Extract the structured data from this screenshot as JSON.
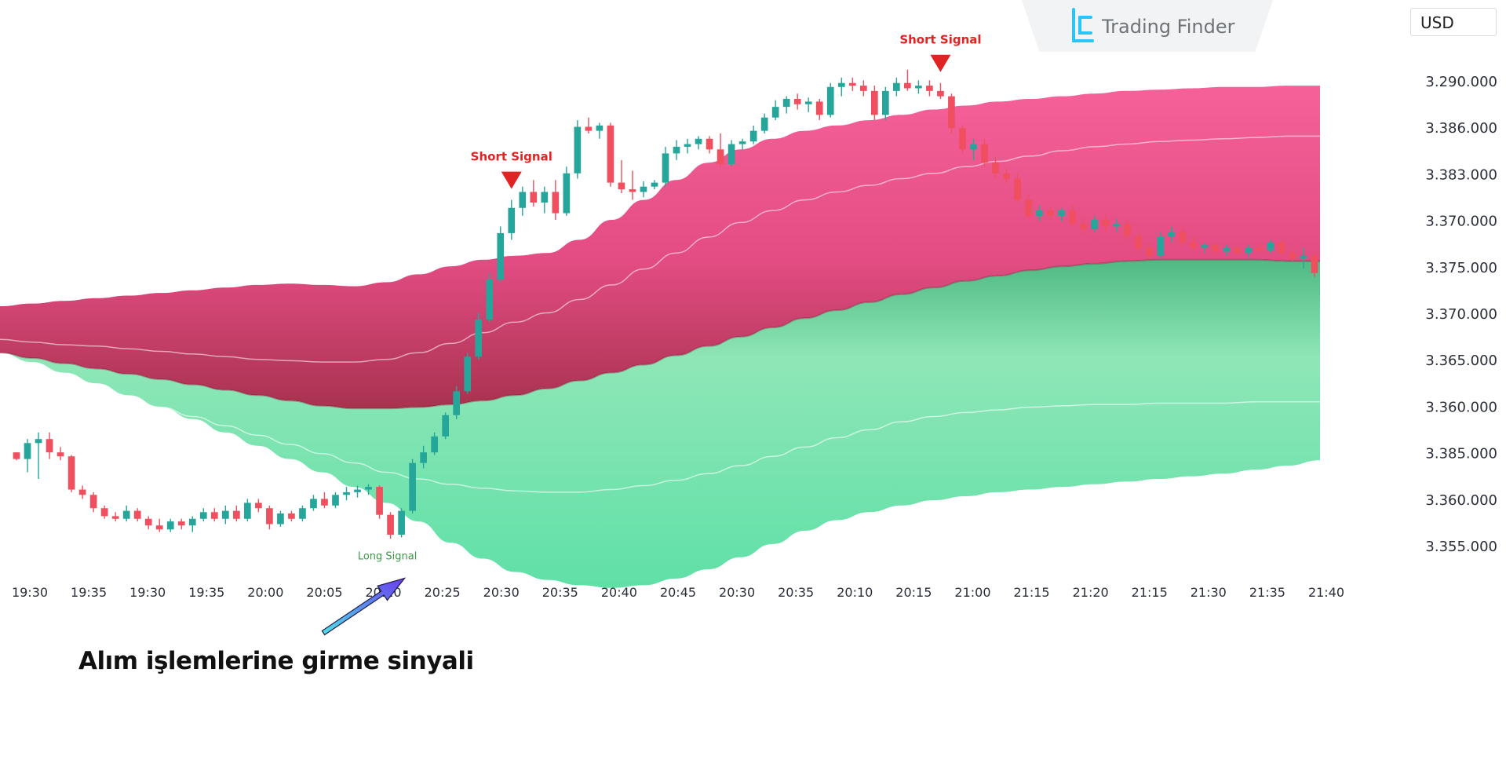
{
  "brand": {
    "name": "Trading Finder",
    "icon": "trading-finder-logo-icon"
  },
  "currency": "USD",
  "caption": "Alım işlemlerine girme sinyali",
  "colors": {
    "bull": "#26a69a",
    "bear": "#ef4f5e",
    "upper_band": "#f0588f",
    "lower_band": "#5fe0a7",
    "short_signal": "#e02424",
    "long_signal": "#3b9a4a",
    "arrow": "#6a5cf0"
  },
  "signals": [
    {
      "type": "short",
      "label": "Short Signal",
      "candle": 45
    },
    {
      "type": "short",
      "label": "Short Signal",
      "candle": 84
    },
    {
      "type": "long",
      "label": "Long Signal",
      "candle": 35
    }
  ],
  "chart_data": {
    "type": "candlestick",
    "title": "",
    "xlabel": "",
    "ylabel": "",
    "grid": false,
    "y_tick_labels": [
      "3.290.000",
      "3.386.000",
      "3.383.000",
      "3.370.000",
      "3.375.000",
      "3.370.000",
      "3.365.000",
      "3.360.000",
      "3.385.000",
      "3.360.000",
      "3.355.000"
    ],
    "x_tick_labels": [
      "19:30",
      "19:35",
      "19:30",
      "19:35",
      "20:00",
      "20:05",
      "20:10",
      "20:25",
      "20:30",
      "20:35",
      "20:40",
      "20:45",
      "20:30",
      "20:35",
      "20:10",
      "20:15",
      "21:00",
      "21:15",
      "21:20",
      "21:15",
      "21:30",
      "21:35",
      "21:40"
    ],
    "ylim": [
      3.3545,
      3.3935
    ],
    "candles": [
      [
        3.363,
        3.363,
        3.3624,
        3.3625
      ],
      [
        3.3625,
        3.364,
        3.3615,
        3.3637
      ],
      [
        3.3637,
        3.3645,
        3.361,
        3.364
      ],
      [
        3.364,
        3.3645,
        3.3625,
        3.363
      ],
      [
        3.363,
        3.3634,
        3.3624,
        3.3627
      ],
      [
        3.3627,
        3.3628,
        3.36,
        3.3602
      ],
      [
        3.3602,
        3.3605,
        3.3595,
        3.3598
      ],
      [
        3.3598,
        3.36,
        3.3585,
        3.3588
      ],
      [
        3.3588,
        3.359,
        3.358,
        3.3582
      ],
      [
        3.3582,
        3.3585,
        3.3578,
        3.358
      ],
      [
        3.358,
        3.359,
        3.3578,
        3.3586
      ],
      [
        3.3586,
        3.3588,
        3.3578,
        3.358
      ],
      [
        3.358,
        3.3582,
        3.3572,
        3.3575
      ],
      [
        3.3575,
        3.358,
        3.357,
        3.3572
      ],
      [
        3.3572,
        3.358,
        3.357,
        3.3578
      ],
      [
        3.3578,
        3.358,
        3.3572,
        3.3575
      ],
      [
        3.3575,
        3.3582,
        3.357,
        3.358
      ],
      [
        3.358,
        3.3588,
        3.3578,
        3.3585
      ],
      [
        3.3585,
        3.3588,
        3.3578,
        3.358
      ],
      [
        3.358,
        3.359,
        3.3576,
        3.3586
      ],
      [
        3.3586,
        3.359,
        3.3578,
        3.358
      ],
      [
        3.358,
        3.3595,
        3.3578,
        3.3592
      ],
      [
        3.3592,
        3.3595,
        3.3585,
        3.3588
      ],
      [
        3.3588,
        3.359,
        3.3572,
        3.3576
      ],
      [
        3.3576,
        3.3586,
        3.3574,
        3.3584
      ],
      [
        3.3584,
        3.3586,
        3.3578,
        3.358
      ],
      [
        3.358,
        3.359,
        3.3578,
        3.3588
      ],
      [
        3.3588,
        3.3598,
        3.3586,
        3.3595
      ],
      [
        3.3595,
        3.36,
        3.3588,
        3.359
      ],
      [
        3.359,
        3.36,
        3.3588,
        3.3598
      ],
      [
        3.3598,
        3.3604,
        3.3594,
        3.36
      ],
      [
        3.36,
        3.3605,
        3.3596,
        3.3602
      ],
      [
        3.3602,
        3.3606,
        3.3598,
        3.3604
      ],
      [
        3.3604,
        3.3605,
        3.358,
        3.3583
      ],
      [
        3.3583,
        3.3585,
        3.3565,
        3.3568
      ],
      [
        3.3568,
        3.3588,
        3.3566,
        3.3586
      ],
      [
        3.3586,
        3.3625,
        3.3584,
        3.3622
      ],
      [
        3.3622,
        3.3635,
        3.3618,
        3.363
      ],
      [
        3.363,
        3.3645,
        3.3628,
        3.3642
      ],
      [
        3.3642,
        3.366,
        3.364,
        3.3658
      ],
      [
        3.3658,
        3.368,
        3.3655,
        3.3676
      ],
      [
        3.3676,
        3.3705,
        3.3674,
        3.3702
      ],
      [
        3.3702,
        3.3735,
        3.37,
        3.373
      ],
      [
        3.373,
        3.3765,
        3.3728,
        3.376
      ],
      [
        3.376,
        3.38,
        3.3758,
        3.3795
      ],
      [
        3.3795,
        3.382,
        3.379,
        3.3814
      ],
      [
        3.3814,
        3.383,
        3.3808,
        3.3826
      ],
      [
        3.3826,
        3.3835,
        3.3815,
        3.3818
      ],
      [
        3.3818,
        3.383,
        3.381,
        3.3826
      ],
      [
        3.3826,
        3.3835,
        3.3805,
        3.381
      ],
      [
        3.381,
        3.3845,
        3.3808,
        3.384
      ],
      [
        3.384,
        3.388,
        3.3836,
        3.3875
      ],
      [
        3.3875,
        3.3882,
        3.387,
        3.3872
      ],
      [
        3.3872,
        3.3878,
        3.3866,
        3.3876
      ],
      [
        3.3876,
        3.3878,
        3.383,
        3.3833
      ],
      [
        3.3833,
        3.385,
        3.3825,
        3.3828
      ],
      [
        3.3828,
        3.3842,
        3.382,
        3.3826
      ],
      [
        3.3826,
        3.3834,
        3.3822,
        3.383
      ],
      [
        3.383,
        3.3835,
        3.3828,
        3.3833
      ],
      [
        3.3833,
        3.386,
        3.383,
        3.3855
      ],
      [
        3.3855,
        3.3865,
        3.385,
        3.386
      ],
      [
        3.386,
        3.3866,
        3.3855,
        3.3862
      ],
      [
        3.3862,
        3.3868,
        3.3858,
        3.3866
      ],
      [
        3.3866,
        3.3868,
        3.3855,
        3.3858
      ],
      [
        3.3858,
        3.387,
        3.3845,
        3.3847
      ],
      [
        3.3847,
        3.3865,
        3.3845,
        3.3862
      ],
      [
        3.3862,
        3.3866,
        3.3858,
        3.3864
      ],
      [
        3.3864,
        3.3876,
        3.3862,
        3.3872
      ],
      [
        3.3872,
        3.3885,
        3.387,
        3.3882
      ],
      [
        3.3882,
        3.3895,
        3.388,
        3.389
      ],
      [
        3.389,
        3.3898,
        3.3885,
        3.3896
      ],
      [
        3.3896,
        3.39,
        3.3888,
        3.3892
      ],
      [
        3.3892,
        3.3897,
        3.3886,
        3.3894
      ],
      [
        3.3894,
        3.3896,
        3.388,
        3.3884
      ],
      [
        3.3884,
        3.3908,
        3.3882,
        3.3905
      ],
      [
        3.3905,
        3.3912,
        3.3898,
        3.3908
      ],
      [
        3.3908,
        3.3912,
        3.3902,
        3.3906
      ],
      [
        3.3906,
        3.391,
        3.3898,
        3.3902
      ],
      [
        3.3902,
        3.3906,
        3.388,
        3.3884
      ],
      [
        3.3884,
        3.3905,
        3.388,
        3.3902
      ],
      [
        3.3902,
        3.3912,
        3.3898,
        3.3908
      ],
      [
        3.3908,
        3.3918,
        3.3902,
        3.3904
      ],
      [
        3.3904,
        3.391,
        3.39,
        3.3906
      ],
      [
        3.3906,
        3.391,
        3.3898,
        3.3902
      ],
      [
        3.3902,
        3.3908,
        3.3896,
        3.3898
      ],
      [
        3.3898,
        3.39,
        3.387,
        3.3874
      ],
      [
        3.3874,
        3.3876,
        3.3855,
        3.3858
      ],
      [
        3.3858,
        3.3866,
        3.385,
        3.3862
      ],
      [
        3.3862,
        3.3866,
        3.3845,
        3.3848
      ],
      [
        3.3848,
        3.3852,
        3.3836,
        3.384
      ],
      [
        3.384,
        3.3844,
        3.3832,
        3.3836
      ],
      [
        3.3836,
        3.384,
        3.3818,
        3.382
      ],
      [
        3.382,
        3.3824,
        3.3806,
        3.3808
      ],
      [
        3.3808,
        3.3816,
        3.3804,
        3.3812
      ],
      [
        3.3812,
        3.3815,
        3.3805,
        3.3808
      ],
      [
        3.3808,
        3.3814,
        3.3804,
        3.3812
      ],
      [
        3.3812,
        3.3816,
        3.38,
        3.3802
      ],
      [
        3.3802,
        3.3806,
        3.3794,
        3.3798
      ],
      [
        3.3798,
        3.3808,
        3.3796,
        3.3805
      ],
      [
        3.3805,
        3.3808,
        3.3796,
        3.38
      ],
      [
        3.38,
        3.3806,
        3.3796,
        3.3802
      ],
      [
        3.3802,
        3.3805,
        3.379,
        3.3793
      ],
      [
        3.3793,
        3.3796,
        3.378,
        3.3784
      ],
      [
        3.3784,
        3.3788,
        3.3775,
        3.3778
      ],
      [
        3.3778,
        3.3796,
        3.3776,
        3.3792
      ],
      [
        3.3792,
        3.38,
        3.3788,
        3.3796
      ],
      [
        3.3796,
        3.38,
        3.3785,
        3.3788
      ],
      [
        3.3788,
        3.3792,
        3.3782,
        3.3784
      ],
      [
        3.3784,
        3.3788,
        3.378,
        3.3786
      ],
      [
        3.3786,
        3.3788,
        3.3778,
        3.3781
      ],
      [
        3.3781,
        3.3786,
        3.3778,
        3.3784
      ],
      [
        3.3784,
        3.3786,
        3.3778,
        3.378
      ],
      [
        3.378,
        3.3786,
        3.3776,
        3.3784
      ],
      [
        3.3784,
        3.3788,
        3.378,
        3.3782
      ],
      [
        3.3782,
        3.379,
        3.378,
        3.3788
      ],
      [
        3.3788,
        3.379,
        3.3778,
        3.378
      ],
      [
        3.378,
        3.3782,
        3.3774,
        3.3776
      ],
      [
        3.3776,
        3.3784,
        3.3768,
        3.3778
      ],
      [
        3.3778,
        3.378,
        3.3762,
        3.3765
      ]
    ],
    "bands": {
      "upper_outer": [
        3.374,
        3.3742,
        3.3744,
        3.3746,
        3.3748,
        3.375,
        3.3752,
        3.3754,
        3.3756,
        3.3757,
        3.3756,
        3.3755,
        3.3758,
        3.3764,
        3.377,
        3.3775,
        3.3778,
        3.378,
        3.379,
        3.3805,
        3.382,
        3.3835,
        3.3848,
        3.3858,
        3.3866,
        3.3872,
        3.3876,
        3.388,
        3.3884,
        3.3888,
        3.3891,
        3.3894,
        3.3896,
        3.3898,
        3.39,
        3.3902,
        3.3903,
        3.3904,
        3.3905,
        3.3905,
        3.3906,
        3.3906
      ],
      "upper_mid": [
        3.3715,
        3.3713,
        3.3711,
        3.371,
        3.3708,
        3.3706,
        3.3704,
        3.3702,
        3.37,
        3.3699,
        3.3698,
        3.3698,
        3.37,
        3.3705,
        3.3712,
        3.372,
        3.3728,
        3.3735,
        3.3745,
        3.3756,
        3.3768,
        3.378,
        3.3792,
        3.3803,
        3.3812,
        3.382,
        3.3826,
        3.3831,
        3.3836,
        3.384,
        3.3845,
        3.3849,
        3.3853,
        3.3857,
        3.386,
        3.3862,
        3.3864,
        3.3865,
        3.3866,
        3.3867,
        3.3868,
        3.3868
      ],
      "center": [
        3.3705,
        3.3701,
        3.3697,
        3.3693,
        3.3689,
        3.3685,
        3.3681,
        3.3677,
        3.3673,
        3.3669,
        3.3665,
        3.3663,
        3.3663,
        3.3664,
        3.3666,
        3.3669,
        3.3673,
        3.3678,
        3.3684,
        3.369,
        3.3696,
        3.3703,
        3.371,
        3.3717,
        3.3724,
        3.3731,
        3.3737,
        3.3743,
        3.3749,
        3.3754,
        3.3759,
        3.3763,
        3.3767,
        3.377,
        3.3772,
        3.3774,
        3.3775,
        3.3775,
        3.3775,
        3.3775,
        3.3774,
        3.3774
      ],
      "lower_mid": [
        3.3695,
        3.3688,
        3.3682,
        3.3676,
        3.367,
        3.3664,
        3.3657,
        3.365,
        3.3643,
        3.3636,
        3.3629,
        3.3622,
        3.3615,
        3.361,
        3.3606,
        3.3603,
        3.3601,
        3.36,
        3.36,
        3.3602,
        3.3605,
        3.3609,
        3.3614,
        3.362,
        3.3627,
        3.3634,
        3.3641,
        3.3647,
        3.3653,
        3.3657,
        3.366,
        3.3662,
        3.3664,
        3.3665,
        3.3666,
        3.3666,
        3.3667,
        3.3667,
        3.3667,
        3.3668,
        3.3668,
        3.3668
      ],
      "lower_outer": [
        3.3705,
        3.3698,
        3.369,
        3.3682,
        3.3673,
        3.3664,
        3.3655,
        3.3645,
        3.3635,
        3.3625,
        3.3615,
        3.3604,
        3.3592,
        3.3578,
        3.3562,
        3.355,
        3.354,
        3.3534,
        3.353,
        3.3528,
        3.353,
        3.3535,
        3.3542,
        3.3551,
        3.3561,
        3.3571,
        3.3579,
        3.3585,
        3.359,
        3.3594,
        3.3597,
        3.36,
        3.3602,
        3.3604,
        3.3606,
        3.3608,
        3.361,
        3.3612,
        3.3614,
        3.3617,
        3.362,
        3.3624
      ]
    }
  }
}
